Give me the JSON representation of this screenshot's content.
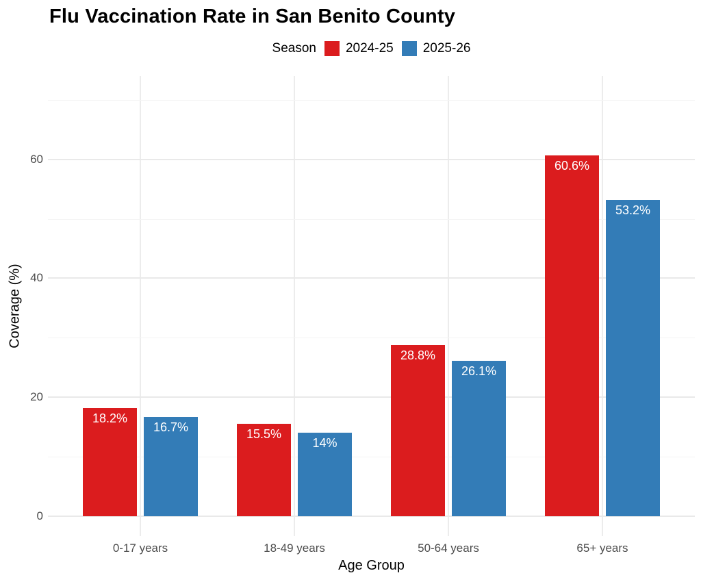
{
  "title": "Flu Vaccination Rate in San Benito County",
  "legend": {
    "title": "Season",
    "entries": [
      {
        "label": "2024-25",
        "color": "#DB1C1E"
      },
      {
        "label": "2025-26",
        "color": "#337CB7"
      }
    ]
  },
  "colors": {
    "background": "#FFFFFF",
    "grid_major": "#E9E9E9",
    "grid_minor": "#F4F4F4",
    "tick_label": "#4D4D4D",
    "bar_label_text": "#FFFFFF",
    "season_2024_25": "#DB1C1E",
    "season_2025_26": "#337CB7"
  },
  "chart_data": {
    "type": "bar",
    "title": "Flu Vaccination Rate in San Benito County",
    "categories": [
      "0-17 years",
      "18-49 years",
      "50-64 years",
      "65+ years"
    ],
    "series": [
      {
        "name": "2024-25",
        "color": "#DB1C1E",
        "values": [
          18.2,
          15.5,
          28.8,
          60.6
        ],
        "labels": [
          "18.2%",
          "15.5%",
          "28.8%",
          "60.6%"
        ]
      },
      {
        "name": "2025-26",
        "color": "#337CB7",
        "values": [
          16.7,
          14,
          26.1,
          53.2
        ],
        "labels": [
          "16.7%",
          "14%",
          "26.1%",
          "53.2%"
        ]
      }
    ],
    "xlabel": "Age Group",
    "ylabel": "Coverage (%)",
    "ylim": [
      0,
      74
    ],
    "yticks": [
      0,
      20,
      40,
      60
    ],
    "yticklabels": [
      "0",
      "20",
      "40",
      "60"
    ],
    "yminor": [
      10,
      30,
      50,
      70
    ],
    "grid": "on",
    "legend_position": "top",
    "bar_value_labels_inside": true
  }
}
